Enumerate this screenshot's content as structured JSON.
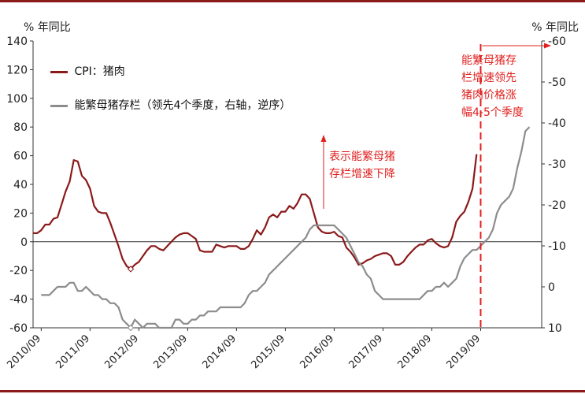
{
  "chart_data": {
    "type": "line",
    "title": "",
    "left_unit": "% 年同比",
    "right_unit": "% 年同比",
    "left_axis": {
      "min": -60,
      "max": 140,
      "ticks": [
        -60,
        -40,
        -20,
        0,
        20,
        40,
        60,
        80,
        100,
        120,
        140
      ]
    },
    "right_axis": {
      "min": 10,
      "max": -60,
      "inverted": true,
      "ticks": [
        10,
        0,
        -10,
        -20,
        -30,
        -40,
        -50,
        -60
      ]
    },
    "x_axis": {
      "start": "2010-07",
      "end": "2020-12",
      "tick_labels": [
        "2010/09",
        "2011/09",
        "2012/09",
        "2013/09",
        "2014/09",
        "2015/09",
        "2016/09",
        "2017/09",
        "2018/09",
        "2019/09"
      ]
    },
    "legend": [
      {
        "name": "CPI：猪肉",
        "color": "#8b1a1a"
      },
      {
        "name": "能繁母猪存栏（领先4个季度，右轴，逆序）",
        "color": "#8c8c8c"
      }
    ],
    "series": [
      {
        "name": "CPI：猪肉",
        "axis": "left",
        "color": "#8b1a1a",
        "points": [
          [
            "2010-07",
            6
          ],
          [
            "2010-08",
            6
          ],
          [
            "2010-09",
            8
          ],
          [
            "2010-10",
            12
          ],
          [
            "2010-11",
            12
          ],
          [
            "2010-12",
            16
          ],
          [
            "2011-01",
            17
          ],
          [
            "2011-02",
            26
          ],
          [
            "2011-03",
            35
          ],
          [
            "2011-04",
            42
          ],
          [
            "2011-05",
            57
          ],
          [
            "2011-06",
            56
          ],
          [
            "2011-07",
            46
          ],
          [
            "2011-08",
            43
          ],
          [
            "2011-09",
            37
          ],
          [
            "2011-10",
            25
          ],
          [
            "2011-11",
            21
          ],
          [
            "2011-12",
            20
          ],
          [
            "2012-01",
            20
          ],
          [
            "2012-02",
            13
          ],
          [
            "2012-03",
            5
          ],
          [
            "2012-04",
            -3
          ],
          [
            "2012-05",
            -12
          ],
          [
            "2012-06",
            -17
          ],
          [
            "2012-07",
            -19
          ],
          [
            "2012-08",
            -16
          ],
          [
            "2012-09",
            -14
          ],
          [
            "2012-10",
            -10
          ],
          [
            "2012-11",
            -6
          ],
          [
            "2012-12",
            -3
          ],
          [
            "2013-01",
            -3
          ],
          [
            "2013-02",
            -5
          ],
          [
            "2013-03",
            -6
          ],
          [
            "2013-04",
            -3
          ],
          [
            "2013-05",
            0
          ],
          [
            "2013-06",
            3
          ],
          [
            "2013-07",
            5
          ],
          [
            "2013-08",
            6
          ],
          [
            "2013-09",
            6
          ],
          [
            "2013-10",
            4
          ],
          [
            "2013-11",
            2
          ],
          [
            "2013-12",
            -6
          ],
          [
            "2014-01",
            -7
          ],
          [
            "2014-02",
            -7
          ],
          [
            "2014-03",
            -7
          ],
          [
            "2014-04",
            -2
          ],
          [
            "2014-05",
            -3
          ],
          [
            "2014-06",
            -4
          ],
          [
            "2014-07",
            -3
          ],
          [
            "2014-08",
            -3
          ],
          [
            "2014-09",
            -3
          ],
          [
            "2014-10",
            -5
          ],
          [
            "2014-11",
            -5
          ],
          [
            "2014-12",
            -3
          ],
          [
            "2015-01",
            2
          ],
          [
            "2015-02",
            8
          ],
          [
            "2015-03",
            5
          ],
          [
            "2015-04",
            10
          ],
          [
            "2015-05",
            17
          ],
          [
            "2015-06",
            19
          ],
          [
            "2015-07",
            17
          ],
          [
            "2015-08",
            21
          ],
          [
            "2015-09",
            21
          ],
          [
            "2015-10",
            25
          ],
          [
            "2015-11",
            23
          ],
          [
            "2015-12",
            27
          ],
          [
            "2016-01",
            33
          ],
          [
            "2016-02",
            33
          ],
          [
            "2016-03",
            30
          ],
          [
            "2016-04",
            20
          ],
          [
            "2016-05",
            10
          ],
          [
            "2016-06",
            7
          ],
          [
            "2016-07",
            6
          ],
          [
            "2016-08",
            6
          ],
          [
            "2016-09",
            7
          ],
          [
            "2016-10",
            4
          ],
          [
            "2016-11",
            3
          ],
          [
            "2016-12",
            -4
          ],
          [
            "2017-01",
            -7
          ],
          [
            "2017-02",
            -11
          ],
          [
            "2017-03",
            -16
          ],
          [
            "2017-04",
            -15
          ],
          [
            "2017-05",
            -13
          ],
          [
            "2017-06",
            -12
          ],
          [
            "2017-07",
            -10
          ],
          [
            "2017-08",
            -9
          ],
          [
            "2017-09",
            -8
          ],
          [
            "2017-10",
            -8
          ],
          [
            "2017-11",
            -10
          ],
          [
            "2017-12",
            -16
          ],
          [
            "2018-01",
            -16
          ],
          [
            "2018-02",
            -14
          ],
          [
            "2018-03",
            -10
          ],
          [
            "2018-04",
            -7
          ],
          [
            "2018-05",
            -4
          ],
          [
            "2018-06",
            -2
          ],
          [
            "2018-07",
            -2
          ],
          [
            "2018-08",
            1
          ],
          [
            "2018-09",
            2
          ],
          [
            "2018-10",
            -1
          ],
          [
            "2018-11",
            -3
          ],
          [
            "2018-12",
            -4
          ],
          [
            "2019-01",
            -3
          ],
          [
            "2019-02",
            3
          ],
          [
            "2019-03",
            14
          ],
          [
            "2019-04",
            18
          ],
          [
            "2019-05",
            21
          ],
          [
            "2019-06",
            28
          ],
          [
            "2019-07",
            37
          ],
          [
            "2019-08",
            61
          ]
        ]
      },
      {
        "name": "能繁母猪存栏（领先4个季度，右轴，逆序）",
        "axis": "right",
        "color": "#8c8c8c",
        "points": [
          [
            "2010-09",
            2
          ],
          [
            "2010-10",
            2
          ],
          [
            "2010-11",
            2
          ],
          [
            "2010-12",
            1
          ],
          [
            "2011-01",
            0
          ],
          [
            "2011-02",
            0
          ],
          [
            "2011-03",
            0
          ],
          [
            "2011-04",
            -1
          ],
          [
            "2011-05",
            -1
          ],
          [
            "2011-06",
            1
          ],
          [
            "2011-07",
            1
          ],
          [
            "2011-08",
            0
          ],
          [
            "2011-09",
            1
          ],
          [
            "2011-10",
            2
          ],
          [
            "2011-11",
            2
          ],
          [
            "2011-12",
            3
          ],
          [
            "2012-01",
            3
          ],
          [
            "2012-02",
            4
          ],
          [
            "2012-03",
            4
          ],
          [
            "2012-04",
            5
          ],
          [
            "2012-05",
            8
          ],
          [
            "2012-06",
            9
          ],
          [
            "2012-07",
            10
          ],
          [
            "2012-08",
            8
          ],
          [
            "2012-09",
            9
          ],
          [
            "2012-10",
            10
          ],
          [
            "2012-11",
            9
          ],
          [
            "2012-12",
            9
          ],
          [
            "2013-01",
            9
          ],
          [
            "2013-02",
            10
          ],
          [
            "2013-03",
            10
          ],
          [
            "2013-04",
            10
          ],
          [
            "2013-05",
            10
          ],
          [
            "2013-06",
            8
          ],
          [
            "2013-07",
            8
          ],
          [
            "2013-08",
            9
          ],
          [
            "2013-09",
            9
          ],
          [
            "2013-10",
            8
          ],
          [
            "2013-11",
            8
          ],
          [
            "2013-12",
            7
          ],
          [
            "2014-01",
            7
          ],
          [
            "2014-02",
            6
          ],
          [
            "2014-03",
            6
          ],
          [
            "2014-04",
            6
          ],
          [
            "2014-05",
            5
          ],
          [
            "2014-06",
            5
          ],
          [
            "2014-07",
            5
          ],
          [
            "2014-08",
            5
          ],
          [
            "2014-09",
            5
          ],
          [
            "2014-10",
            5
          ],
          [
            "2014-11",
            4
          ],
          [
            "2014-12",
            2
          ],
          [
            "2015-01",
            1
          ],
          [
            "2015-02",
            1
          ],
          [
            "2015-03",
            0
          ],
          [
            "2015-04",
            -1
          ],
          [
            "2015-05",
            -3
          ],
          [
            "2015-06",
            -4
          ],
          [
            "2015-07",
            -5
          ],
          [
            "2015-08",
            -6
          ],
          [
            "2015-09",
            -7
          ],
          [
            "2015-10",
            -8
          ],
          [
            "2015-11",
            -9
          ],
          [
            "2015-12",
            -10
          ],
          [
            "2016-01",
            -11
          ],
          [
            "2016-02",
            -12
          ],
          [
            "2016-03",
            -14
          ],
          [
            "2016-04",
            -15
          ],
          [
            "2016-05",
            -15
          ],
          [
            "2016-06",
            -15
          ],
          [
            "2016-07",
            -15
          ],
          [
            "2016-08",
            -15
          ],
          [
            "2016-09",
            -15
          ],
          [
            "2016-10",
            -14
          ],
          [
            "2016-11",
            -13
          ],
          [
            "2016-12",
            -12
          ],
          [
            "2017-01",
            -10
          ],
          [
            "2017-02",
            -8
          ],
          [
            "2017-03",
            -6
          ],
          [
            "2017-04",
            -5
          ],
          [
            "2017-05",
            -3
          ],
          [
            "2017-06",
            -2
          ],
          [
            "2017-07",
            1
          ],
          [
            "2017-08",
            2
          ],
          [
            "2017-09",
            3
          ],
          [
            "2017-10",
            3
          ],
          [
            "2017-11",
            3
          ],
          [
            "2017-12",
            3
          ],
          [
            "2018-01",
            3
          ],
          [
            "2018-02",
            3
          ],
          [
            "2018-03",
            3
          ],
          [
            "2018-04",
            3
          ],
          [
            "2018-05",
            3
          ],
          [
            "2018-06",
            3
          ],
          [
            "2018-07",
            2
          ],
          [
            "2018-08",
            1
          ],
          [
            "2018-09",
            1
          ],
          [
            "2018-10",
            0
          ],
          [
            "2018-11",
            0
          ],
          [
            "2018-12",
            -1
          ],
          [
            "2019-01",
            0
          ],
          [
            "2019-02",
            -1
          ],
          [
            "2019-03",
            -2
          ],
          [
            "2019-04",
            -5
          ],
          [
            "2019-05",
            -7
          ],
          [
            "2019-06",
            -8
          ],
          [
            "2019-07",
            -9
          ],
          [
            "2019-08",
            -9
          ],
          [
            "2019-09",
            -10
          ],
          [
            "2019-10",
            -11
          ],
          [
            "2019-11",
            -12
          ],
          [
            "2019-12",
            -14
          ],
          [
            "2020-01",
            -18
          ],
          [
            "2020-02",
            -20
          ],
          [
            "2020-03",
            -21
          ],
          [
            "2020-04",
            -22
          ],
          [
            "2020-05",
            -24
          ],
          [
            "2020-06",
            -29
          ],
          [
            "2020-07",
            -33
          ],
          [
            "2020-08",
            -38
          ],
          [
            "2020-09",
            -39
          ]
        ]
      }
    ],
    "markers": [
      {
        "series": 0,
        "date": "2012-07",
        "value": -19,
        "shape": "diamond"
      },
      {
        "series": 1,
        "date": "2012-07",
        "value": 10,
        "shape": "diamond"
      }
    ],
    "reference_line": {
      "date": "2019-09",
      "color": "#e0201f",
      "style": "dashed"
    },
    "annotations": [
      {
        "id": "left",
        "text": "表示能繁母猪\n存栏增速下降",
        "color": "#e0201f",
        "arrow": "up"
      },
      {
        "id": "right",
        "text": "能繁母猪存\n栏增速领先\n猪肉价格涨\n幅4-5个季度",
        "color": "#e0201f",
        "arrow": "right"
      }
    ]
  }
}
